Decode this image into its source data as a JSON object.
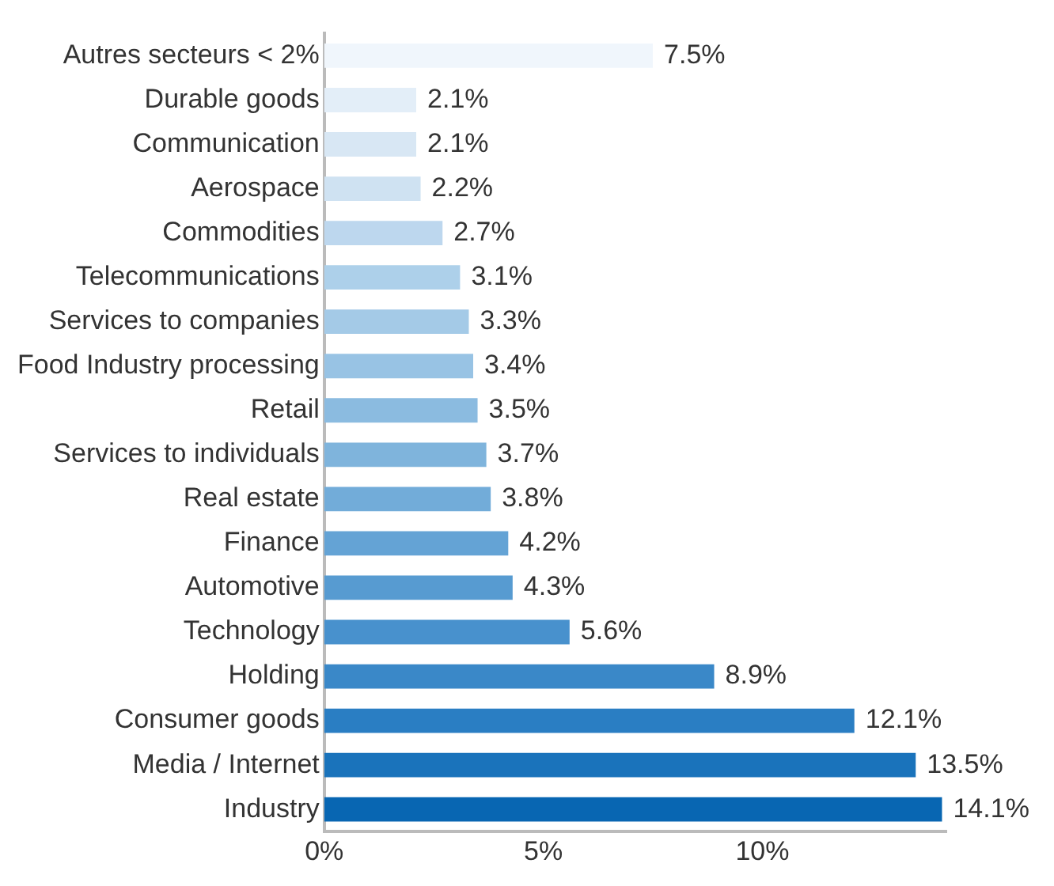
{
  "chart_data": {
    "type": "bar",
    "orientation": "horizontal",
    "categories": [
      "Autres secteurs < 2%",
      "Durable goods",
      "Communication",
      "Aerospace",
      "Commodities",
      "Telecommunications",
      "Services to companies",
      "Food Industry processing",
      "Retail",
      "Services to individuals",
      "Real estate",
      "Finance",
      "Automotive",
      "Technology",
      "Holding",
      "Consumer goods",
      "Media / Internet",
      "Industry"
    ],
    "values": [
      7.5,
      2.1,
      2.1,
      2.2,
      2.7,
      3.1,
      3.3,
      3.4,
      3.5,
      3.7,
      3.8,
      4.2,
      4.3,
      5.6,
      8.9,
      12.1,
      13.5,
      14.1
    ],
    "value_labels": [
      "7.5%",
      "2.1%",
      "2.1%",
      "2.2%",
      "2.7%",
      "3.1%",
      "3.3%",
      "3.4%",
      "3.5%",
      "3.7%",
      "3.8%",
      "4.2%",
      "4.3%",
      "5.6%",
      "8.9%",
      "12.1%",
      "13.5%",
      "14.1%"
    ],
    "colors": [
      "#f0f6fc",
      "#e3eef8",
      "#d8e7f4",
      "#cfe2f2",
      "#bdd7ee",
      "#add0ea",
      "#a4cae7",
      "#98c3e4",
      "#8bbbe0",
      "#7fb4dc",
      "#72acd9",
      "#64a3d5",
      "#579bd1",
      "#4891cd",
      "#3a88c8",
      "#2a7ec3",
      "#1a73bb",
      "#0866b2"
    ],
    "xlim": [
      0,
      14.2
    ],
    "xticks": [
      {
        "value": 0,
        "label": "0%"
      },
      {
        "value": 5,
        "label": "5%"
      },
      {
        "value": 10,
        "label": "10%"
      }
    ],
    "grid": false,
    "legend": false
  }
}
